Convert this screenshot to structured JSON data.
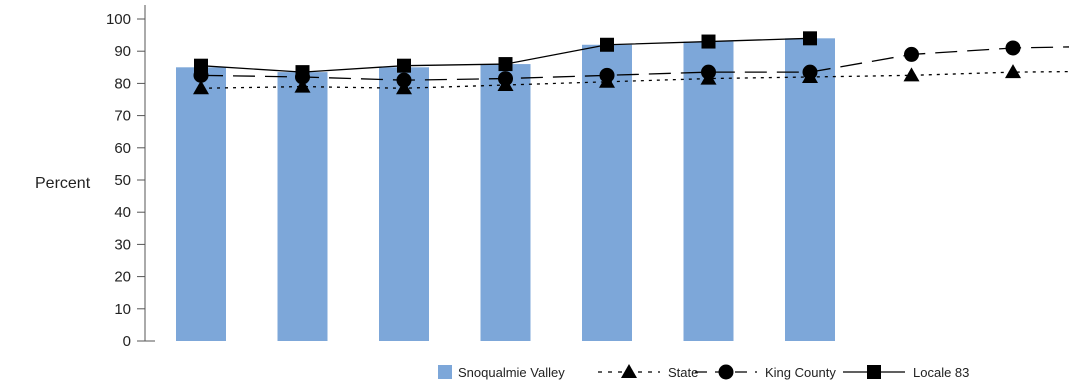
{
  "chart_data": {
    "type": "bar",
    "title": "",
    "xlabel": "",
    "ylabel": "Percent",
    "ylim": [
      0,
      100
    ],
    "yticks": [
      0,
      10,
      20,
      30,
      40,
      50,
      60,
      70,
      80,
      90,
      100
    ],
    "categories": [
      "",
      "",
      "",
      "",
      "",
      "",
      "",
      "",
      ""
    ],
    "grid": false,
    "legend_position": "bottom-right",
    "series": [
      {
        "name": "Snoqualmie Valley",
        "type": "bar",
        "color": "#7da7d9",
        "values": [
          85,
          83.5,
          85,
          86,
          92,
          93,
          94,
          null,
          null
        ]
      },
      {
        "name": "State",
        "type": "line",
        "marker": "triangle",
        "line_style": "dotted",
        "color": "#000000",
        "values": [
          78.5,
          79,
          78.5,
          79.5,
          80.5,
          81.5,
          82,
          82.5,
          83.5
        ]
      },
      {
        "name": "King County",
        "type": "line",
        "marker": "circle",
        "line_style": "long-dash",
        "color": "#000000",
        "values": [
          82.5,
          82,
          81,
          81.5,
          82.5,
          83.5,
          83.5,
          89,
          91
        ]
      },
      {
        "name": "Locale 83",
        "type": "line",
        "marker": "square",
        "line_style": "solid",
        "color": "#000000",
        "values": [
          85.5,
          83.5,
          85.5,
          86,
          92,
          93,
          94,
          null,
          null
        ]
      }
    ]
  }
}
